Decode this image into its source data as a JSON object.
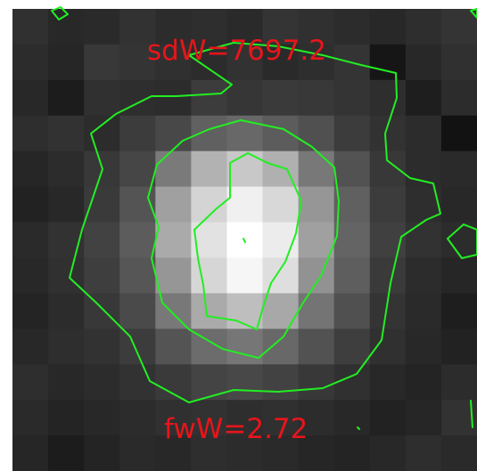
{
  "annotations": {
    "top_label": "sdW=7697.2",
    "bottom_label": "fwW=2.72"
  },
  "colors": {
    "contour": "#22ee22",
    "label": "#e8151b",
    "frame": "#ffffff"
  },
  "image": {
    "description": "grayscale pixelated thumbnail with bright central blob and green contour lines",
    "pixels": [
      [
        48,
        40,
        42,
        50,
        44,
        46,
        42,
        52,
        48,
        44,
        40,
        46,
        52
      ],
      [
        44,
        38,
        56,
        52,
        48,
        44,
        50,
        42,
        46,
        52,
        22,
        40,
        48
      ],
      [
        40,
        28,
        48,
        46,
        44,
        60,
        54,
        58,
        56,
        52,
        46,
        30,
        44
      ],
      [
        46,
        50,
        44,
        60,
        72,
        96,
        104,
        92,
        80,
        60,
        50,
        44,
        18
      ],
      [
        38,
        44,
        56,
        70,
        122,
        178,
        200,
        176,
        120,
        82,
        56,
        44,
        42
      ],
      [
        34,
        40,
        58,
        84,
        160,
        212,
        240,
        216,
        150,
        96,
        60,
        46,
        40
      ],
      [
        42,
        50,
        66,
        92,
        170,
        226,
        255,
        236,
        160,
        100,
        64,
        50,
        44
      ],
      [
        40,
        48,
        62,
        86,
        150,
        214,
        246,
        222,
        146,
        94,
        58,
        44,
        38
      ],
      [
        36,
        44,
        56,
        74,
        120,
        170,
        190,
        168,
        116,
        80,
        52,
        42,
        30
      ],
      [
        40,
        46,
        50,
        60,
        84,
        108,
        118,
        104,
        82,
        62,
        48,
        40,
        34
      ],
      [
        46,
        40,
        44,
        50,
        58,
        68,
        72,
        66,
        56,
        48,
        40,
        36,
        44
      ],
      [
        42,
        36,
        40,
        44,
        48,
        50,
        46,
        48,
        44,
        40,
        34,
        38,
        50
      ],
      [
        38,
        28,
        36,
        42,
        40,
        46,
        44,
        42,
        38,
        36,
        40,
        46,
        42
      ]
    ]
  }
}
